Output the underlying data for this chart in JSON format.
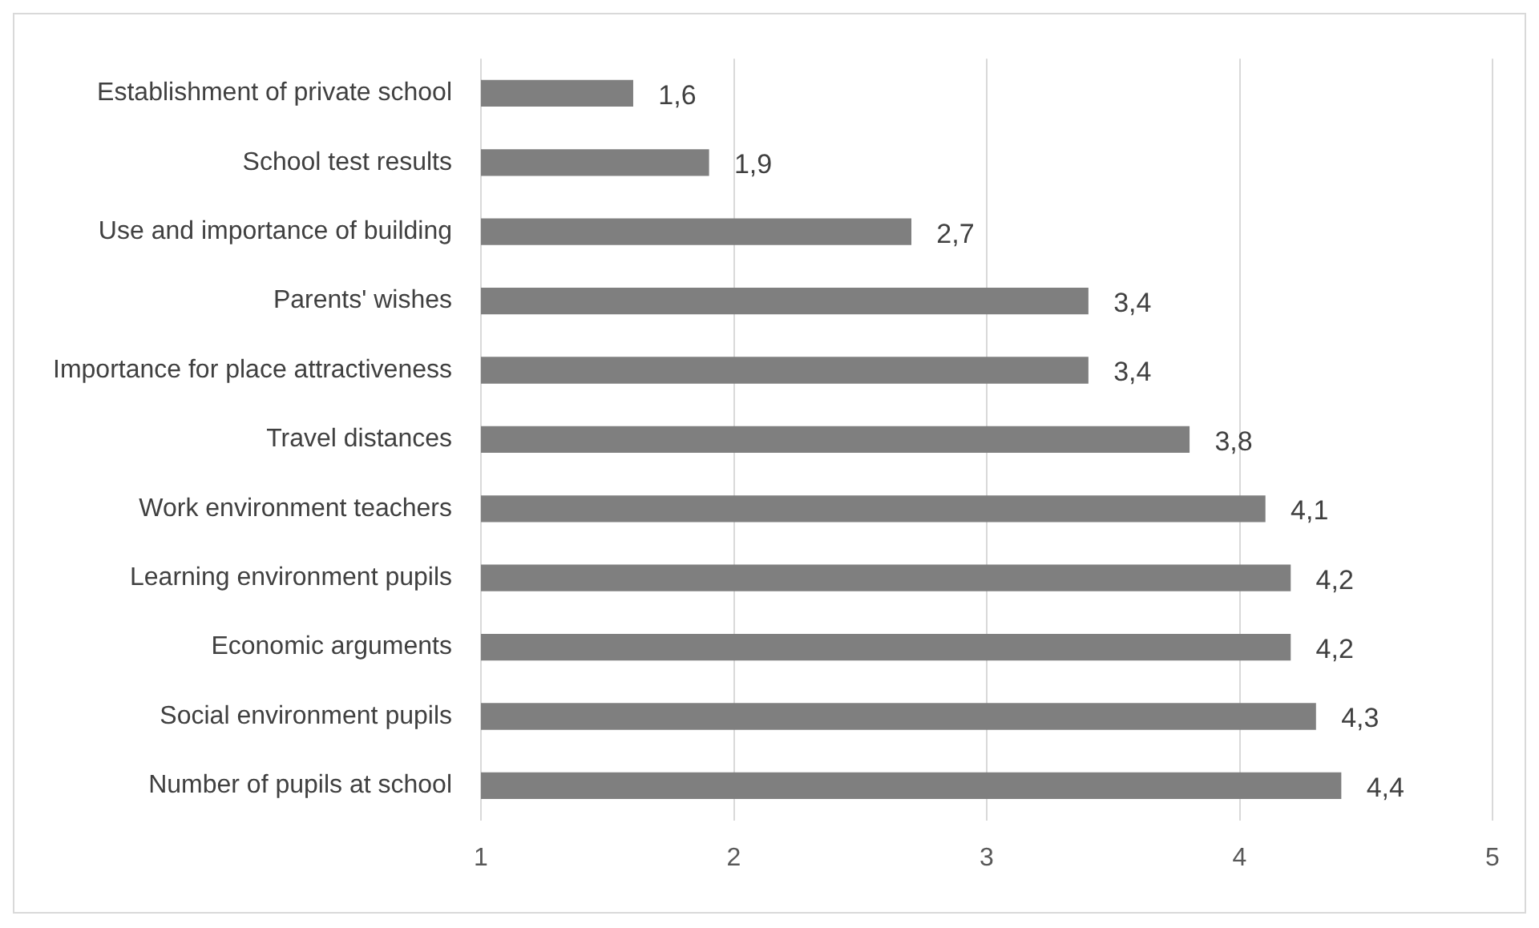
{
  "chart_data": {
    "type": "bar",
    "orientation": "horizontal",
    "categories": [
      "Establishment of private school",
      "School test results",
      "Use and importance of building",
      "Parents' wishes",
      "Importance for place attractiveness",
      "Travel distances",
      "Work environment teachers",
      "Learning environment pupils",
      "Economic arguments",
      "Social environment pupils",
      "Number of pupils at school"
    ],
    "values": [
      1.6,
      1.9,
      2.7,
      3.4,
      3.4,
      3.8,
      4.1,
      4.2,
      4.2,
      4.3,
      4.4
    ],
    "value_labels": [
      "1,6",
      "1,9",
      "2,7",
      "3,4",
      "3,4",
      "3,8",
      "4,1",
      "4,2",
      "4,2",
      "4,3",
      "4,4"
    ],
    "color": "#7f7f7f",
    "xlim": [
      1,
      5
    ],
    "xticks": [
      1,
      2,
      3,
      4,
      5
    ],
    "grid": "x",
    "legend": false
  }
}
